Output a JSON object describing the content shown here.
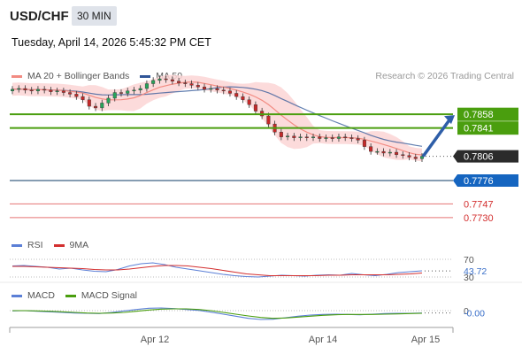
{
  "header": {
    "symbol": "USD/CHF",
    "interval": "30 MIN",
    "datetime": "Tuesday, April 14, 2026 5:45:32 PM CET",
    "credit": "Research © 2026 Trading Central"
  },
  "colors": {
    "ma20": "#f28b82",
    "ma50": "#2f5597",
    "bollinger_fill": "#fbd5d5",
    "candle_up": "#27a45a",
    "candle_down": "#c62828",
    "resistance": "#4a9e0e",
    "pivot": "#1565c0",
    "support": "#d32f2f",
    "rsi": "#5b7fd6",
    "rsi_ma": "#d32f2f",
    "macd": "#5b7fd6",
    "macd_signal": "#4a9e0e"
  },
  "chart_data": [
    {
      "type": "candlestick",
      "legend": [
        "MA 20 + Bollinger Bands",
        "MA 50"
      ],
      "x_ticks": [
        "Apr 12",
        "Apr 14",
        "Apr 15"
      ],
      "ylim": [
        0.772,
        0.789
      ],
      "close": [
        0.7889,
        0.789,
        0.7888,
        0.7887,
        0.7889,
        0.7888,
        0.7886,
        0.7887,
        0.7885,
        0.7883,
        0.788,
        0.7876,
        0.7868,
        0.7866,
        0.7872,
        0.7878,
        0.7885,
        0.7884,
        0.7887,
        0.7888,
        0.789,
        0.7896,
        0.79,
        0.7902,
        0.7901,
        0.7899,
        0.7897,
        0.7896,
        0.7894,
        0.7892,
        0.7889,
        0.789,
        0.7888,
        0.7887,
        0.7884,
        0.788,
        0.7876,
        0.787,
        0.7862,
        0.7856,
        0.7846,
        0.7836,
        0.783,
        0.7831,
        0.7829,
        0.783,
        0.7829,
        0.783,
        0.7828,
        0.7829,
        0.7828,
        0.783,
        0.7829,
        0.7828,
        0.7826,
        0.7818,
        0.7812,
        0.7812,
        0.781,
        0.7811,
        0.7808,
        0.7807,
        0.7805,
        0.7803,
        0.7806
      ],
      "levels": [
        {
          "label": "0.7858",
          "value": 0.7858,
          "kind": "resistance"
        },
        {
          "label": "0.7841",
          "value": 0.7841,
          "kind": "resistance"
        },
        {
          "label": "0.7806",
          "value": 0.7806,
          "kind": "last"
        },
        {
          "label": "0.7776",
          "value": 0.7776,
          "kind": "pivot"
        },
        {
          "label": "0.7747",
          "value": 0.7747,
          "kind": "support"
        },
        {
          "label": "0.7730",
          "value": 0.773,
          "kind": "support"
        }
      ]
    },
    {
      "type": "line",
      "legend": [
        "RSI",
        "9MA"
      ],
      "ylim": [
        20,
        80
      ],
      "y_ticks": [
        {
          "label": "70",
          "value": 70
        },
        {
          "label": "30",
          "value": 30
        }
      ],
      "current": {
        "label": "43.72",
        "value": 43.72
      },
      "series": [
        {
          "name": "RSI",
          "values": [
            55,
            56,
            54,
            52,
            48,
            50,
            46,
            43,
            42,
            47,
            55,
            60,
            62,
            58,
            52,
            48,
            44,
            40,
            36,
            33,
            31,
            30,
            32,
            34,
            33,
            32,
            34,
            35,
            34,
            38,
            35,
            33,
            36,
            40,
            42,
            44
          ]
        },
        {
          "name": "9MA",
          "values": [
            54,
            54,
            53,
            52,
            51,
            50,
            49,
            47,
            46,
            46,
            48,
            51,
            54,
            56,
            56,
            55,
            52,
            49,
            45,
            41,
            37,
            35,
            33,
            33,
            33,
            33,
            33,
            34,
            34,
            35,
            35,
            35,
            35,
            36,
            37,
            39
          ]
        }
      ]
    },
    {
      "type": "line",
      "legend": [
        "MACD",
        "MACD Signal"
      ],
      "ylim": [
        -0.0045,
        0.0015
      ],
      "y_ticks": [
        {
          "label": "0",
          "value": 0
        }
      ],
      "current": {
        "label": "-0.00",
        "value": -0.0008
      },
      "series": [
        {
          "name": "MACD",
          "values": [
            -0.0001,
            0.0,
            -0.0002,
            -0.0004,
            -0.0006,
            -0.0008,
            -0.0009,
            -0.001,
            -0.0006,
            -0.0001,
            0.0004,
            0.0008,
            0.0009,
            0.0007,
            0.0004,
            0.0001,
            -0.0005,
            -0.0012,
            -0.0019,
            -0.0026,
            -0.003,
            -0.0029,
            -0.0024,
            -0.0019,
            -0.0015,
            -0.0013,
            -0.0012,
            -0.0013,
            -0.0014,
            -0.0012,
            -0.001,
            -0.0009,
            -0.0009,
            -0.0008
          ]
        },
        {
          "name": "MACD Signal",
          "values": [
            0.0,
            0.0,
            -0.0001,
            -0.0002,
            -0.0004,
            -0.0006,
            -0.0008,
            -0.0009,
            -0.0008,
            -0.0006,
            -0.0002,
            0.0002,
            0.0005,
            0.0006,
            0.0006,
            0.0004,
            0.0,
            -0.0006,
            -0.0012,
            -0.0018,
            -0.0023,
            -0.0026,
            -0.0025,
            -0.0022,
            -0.0019,
            -0.0016,
            -0.0014,
            -0.0013,
            -0.0013,
            -0.0013,
            -0.0012,
            -0.0011,
            -0.001,
            -0.0009
          ]
        }
      ]
    }
  ]
}
